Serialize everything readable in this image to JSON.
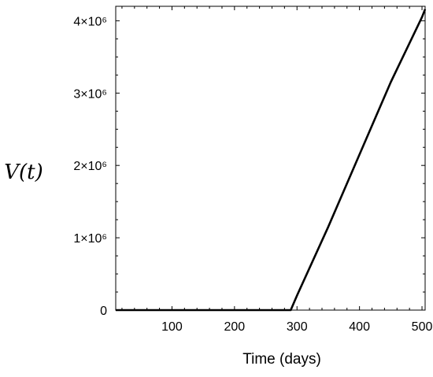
{
  "chart_data": {
    "type": "line",
    "title": "",
    "xlabel": "Time (days)",
    "ylabel": "V(t)",
    "xlim": [
      10,
      505
    ],
    "ylim": [
      0,
      4200000
    ],
    "grid": false,
    "x_ticks": [
      100,
      200,
      300,
      400,
      500
    ],
    "x_tick_labels": [
      "100",
      "200",
      "300",
      "400",
      "500"
    ],
    "y_ticks": [
      0,
      1000000,
      2000000,
      3000000,
      4000000
    ],
    "y_tick_labels": [
      "0",
      "1×10⁶",
      "2×10⁶",
      "3×10⁶",
      "4×10⁶"
    ],
    "series": [
      {
        "color": "#000000",
        "x": [
          10,
          100,
          200,
          290,
          300,
          350,
          400,
          450,
          500,
          505
        ],
        "y": [
          0,
          0,
          0,
          0,
          200000,
          1150000,
          2150000,
          3150000,
          4050000,
          4160000
        ]
      }
    ]
  }
}
